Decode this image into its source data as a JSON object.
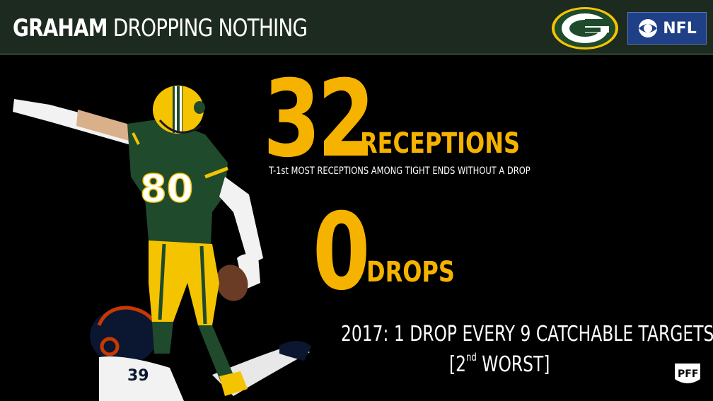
{
  "header": {
    "title_bold": "GRAHAM",
    "title_light": "DROPPING NOTHING",
    "team_logo_icon": "packers-g-logo",
    "broadcaster_badge": {
      "icon": "cbs-eye-icon",
      "label": "NFL"
    }
  },
  "stats": {
    "receptions": {
      "value": "32",
      "label": "RECEPTIONS",
      "note": "T-1st MOST RECEPTIONS AMONG TIGHT ENDS WITHOUT A DROP"
    },
    "drops": {
      "value": "0",
      "label": "DROPS"
    }
  },
  "footnote": {
    "line1": "2017: 1 DROP EVERY 9 CATCHABLE TARGETS",
    "line2_open": "[2",
    "line2_sup": "nd",
    "line2_close": " WORST]"
  },
  "player": {
    "jersey_number": "80",
    "defender_number": "39"
  },
  "watermark": {
    "icon": "pff-logo",
    "label": "PFF"
  },
  "colors": {
    "accent_gold": "#f5b300",
    "header_green": "#1d2a1f",
    "packers_green": "#1f4a2c",
    "packers_gold": "#f5c400",
    "cbs_blue": "#1f3f86",
    "bears_navy": "#0b1630",
    "bears_orange": "#c83803"
  }
}
